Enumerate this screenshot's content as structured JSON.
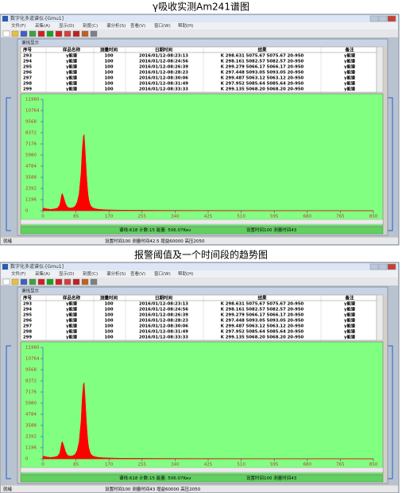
{
  "windows": [
    {
      "caption": "γ吸收实测Am241谱图",
      "title": "数字化多道谱仪-[Gmu1]",
      "menu": [
        "文件(F)",
        "采集(A)",
        "显示(D)",
        "刻度(C)",
        "谱分析(S)",
        "查看(V)",
        "窗口(W)",
        "帮助(H)"
      ],
      "panel_title": "谱线显示",
      "table": {
        "headers": [
          "序号",
          "样品名称",
          "测量时间",
          "日期时间",
          "结果",
          "备注"
        ],
        "rows": [
          [
            "293",
            "γ能谱",
            "100",
            "2016/01/12-08:23:13",
            "K 298.631 5075.67 5075.67 20-950",
            "γ能谱"
          ],
          [
            "294",
            "γ能谱",
            "100",
            "2016/01/12-08:24:56",
            "K 298.161 5082.57 5082.57 20-950",
            "γ能谱"
          ],
          [
            "295",
            "γ能谱",
            "100",
            "2016/01/12-08:26:39",
            "K 299.279 5066.17 5066.17 20-950",
            "γ能谱"
          ],
          [
            "296",
            "γ能谱",
            "100",
            "2016/01/12-08:28:23",
            "K 297.448 5093.05 5093.05 20-950",
            "γ能谱"
          ],
          [
            "297",
            "γ能谱",
            "100",
            "2016/01/12-08:30:06",
            "K 299.487 5063.12 5063.12 20-950",
            "γ能谱"
          ],
          [
            "298",
            "γ能谱",
            "100",
            "2016/01/12-08:31:49",
            "K 297.952 5085.64 5085.64 20-950",
            "γ能谱"
          ],
          [
            "299",
            "γ能谱",
            "100",
            "2016/01/12-08:33:33",
            "K 299.135 5068.20 5068.20 20-950",
            "γ能谱"
          ]
        ]
      },
      "chart": {
        "type": "area",
        "color": "#ff0000",
        "x": [
          0,
          10,
          20,
          30,
          38,
          43,
          46,
          48,
          50,
          53,
          58,
          63,
          68,
          73,
          78,
          83,
          88,
          93,
          98,
          101,
          104,
          106,
          108,
          110,
          112,
          114,
          116,
          118,
          122,
          127,
          132,
          137,
          145,
          155,
          165,
          200,
          300,
          400,
          500,
          600,
          700,
          800,
          850
        ],
        "values": [
          300,
          200,
          150,
          200,
          300,
          600,
          1200,
          1700,
          1850,
          1500,
          800,
          400,
          300,
          300,
          350,
          500,
          900,
          1800,
          4000,
          6500,
          8000,
          8200,
          7000,
          5500,
          4000,
          2800,
          1800,
          1200,
          600,
          350,
          250,
          200,
          150,
          120,
          100,
          60,
          40,
          30,
          25,
          20,
          15,
          10,
          5
        ],
        "xlim": [
          0,
          850
        ],
        "ylim": [
          0,
          11960
        ],
        "xticks": [
          0,
          85,
          170,
          255,
          340,
          425,
          510,
          595,
          680,
          765,
          850
        ],
        "yticks": [
          0,
          1196,
          2392,
          3588,
          4784,
          5980,
          7176,
          8372,
          9568,
          10764,
          11960
        ]
      },
      "status": [
        "谱线:618 计数:15 能量: 506.07Kev",
        "设置时间100 测量时间43"
      ],
      "footer": [
        "就绪",
        "设置时间100 测量时间42.5 增益60000 高压2050"
      ]
    },
    {
      "caption": "报警阈值及一个时间段的趋势图",
      "title": "数字化多道谱仪-[Gmu1]",
      "menu": [
        "文件(F)",
        "采集(A)",
        "显示(D)",
        "刻度(C)",
        "谱分析(S)",
        "查看(V)",
        "窗口(W)",
        "帮助(H)"
      ],
      "panel_title": "谱线显示",
      "table": {
        "headers": [
          "序号",
          "样品名称",
          "测量时间",
          "日期时间",
          "结果",
          "备注"
        ],
        "rows": [
          [
            "293",
            "γ能谱",
            "100",
            "2016/01/12-08:23:13",
            "K 298.631 5075.67 5075.67 20-950",
            "γ能谱"
          ],
          [
            "294",
            "γ能谱",
            "100",
            "2016/01/12-08:24:56",
            "K 298.161 5082.57 5082.57 20-950",
            "γ能谱"
          ],
          [
            "295",
            "γ能谱",
            "100",
            "2016/01/12-08:26:39",
            "K 299.279 5066.17 5066.17 20-950",
            "γ能谱"
          ],
          [
            "296",
            "γ能谱",
            "100",
            "2016/01/12-08:28:23",
            "K 297.448 5093.05 5093.05 20-950",
            "γ能谱"
          ],
          [
            "297",
            "γ能谱",
            "100",
            "2016/01/12-08:30:06",
            "K 299.487 5063.12 5063.12 20-950",
            "γ能谱"
          ],
          [
            "298",
            "γ能谱",
            "100",
            "2016/01/12-08:31:49",
            "K 297.952 5085.64 5085.64 20-950",
            "γ能谱"
          ],
          [
            "299",
            "γ能谱",
            "100",
            "2016/01/12-08:33:33",
            "K 299.135 5068.20 5068.20 20-950",
            "γ能谱"
          ]
        ]
      },
      "chart": {
        "type": "area",
        "color": "#ff0000",
        "x": [
          0,
          10,
          20,
          30,
          38,
          43,
          46,
          48,
          50,
          53,
          58,
          63,
          68,
          73,
          78,
          83,
          88,
          93,
          98,
          101,
          104,
          106,
          108,
          110,
          112,
          114,
          116,
          118,
          122,
          127,
          132,
          137,
          145,
          155,
          165,
          200,
          300,
          400,
          500,
          600,
          700,
          800,
          850
        ],
        "values": [
          300,
          200,
          150,
          200,
          300,
          600,
          1200,
          1700,
          1850,
          1500,
          800,
          400,
          300,
          300,
          350,
          500,
          900,
          1800,
          4000,
          6500,
          8000,
          8200,
          7000,
          5500,
          4000,
          2800,
          1800,
          1200,
          600,
          350,
          250,
          200,
          150,
          120,
          100,
          60,
          40,
          30,
          25,
          20,
          15,
          10,
          5
        ],
        "xlim": [
          0,
          850
        ],
        "ylim": [
          0,
          11960
        ],
        "xticks": [
          0,
          85,
          170,
          255,
          340,
          425,
          510,
          595,
          680,
          765,
          850
        ],
        "yticks": [
          0,
          1196,
          2392,
          3588,
          4784,
          5980,
          7176,
          8372,
          9568,
          10764,
          11960
        ]
      },
      "status": [
        "谱线:618 计数:15 能量: 506.07Kev",
        "设置时间100 测量时间43"
      ],
      "footer": [
        "就绪",
        "设置时间100 测量时间43 增益60000 高压2050"
      ]
    }
  ]
}
